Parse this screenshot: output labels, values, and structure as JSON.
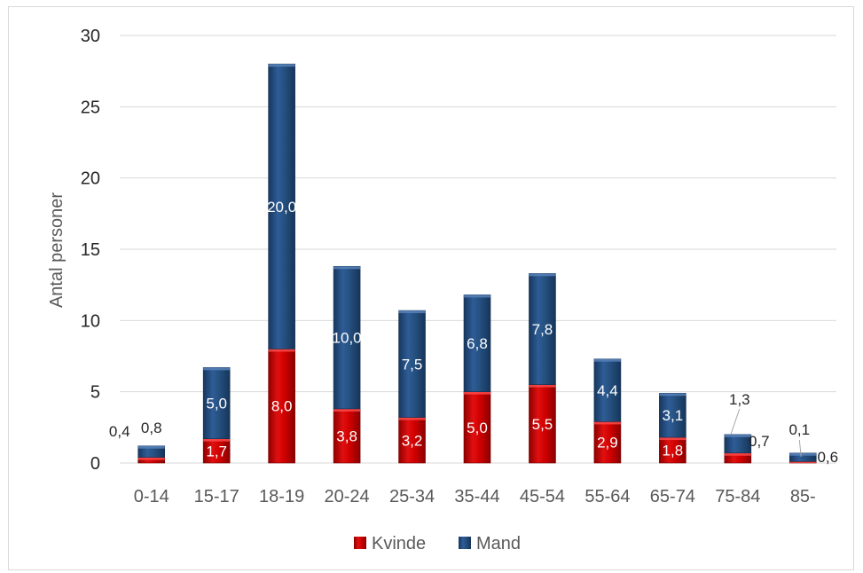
{
  "chart_data": {
    "type": "bar",
    "stacked": true,
    "title": "",
    "xlabel": "",
    "ylabel": "Antal personer",
    "ylim": [
      0,
      30
    ],
    "yticks": [
      "0",
      "5",
      "10",
      "15",
      "20",
      "25",
      "30"
    ],
    "grid": true,
    "legend_position": "bottom",
    "categories": [
      "0-14",
      "15-17",
      "18-19",
      "20-24",
      "25-34",
      "35-44",
      "45-54",
      "55-64",
      "65-74",
      "75-84",
      "85-"
    ],
    "series": [
      {
        "name": "Kvinde",
        "color": "#c00000",
        "values": [
          0.4,
          1.7,
          8.0,
          3.8,
          3.2,
          5.0,
          5.5,
          2.9,
          1.8,
          0.7,
          0.1
        ],
        "labels": [
          "0,4",
          "1,7",
          "8,0",
          "3,8",
          "3,2",
          "5,0",
          "5,5",
          "2,9",
          "1,8",
          "0,7",
          "0,1"
        ]
      },
      {
        "name": "Mand",
        "color": "#1f4e79",
        "values": [
          0.8,
          5.0,
          20.0,
          10.0,
          7.5,
          6.8,
          7.8,
          4.4,
          3.1,
          1.3,
          0.6
        ],
        "labels": [
          "0,8",
          "5,0",
          "20,0",
          "10,0",
          "7,5",
          "6,8",
          "7,8",
          "4,4",
          "3,1",
          "1,3",
          "0,6"
        ]
      }
    ]
  }
}
